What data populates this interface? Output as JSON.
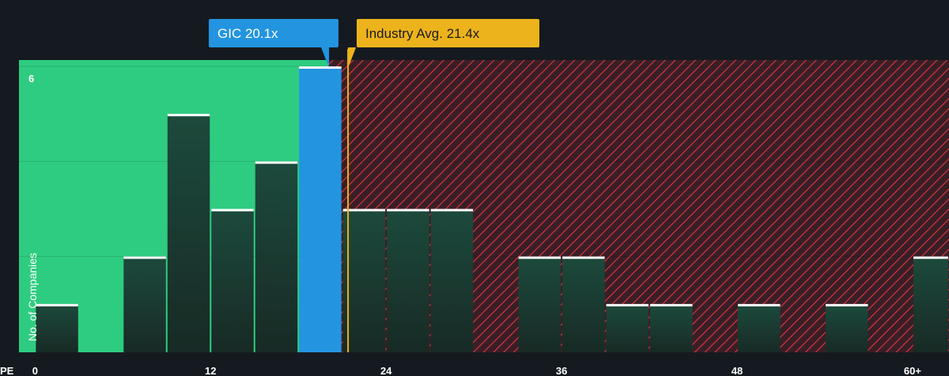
{
  "chart_data": {
    "type": "bar",
    "xlabel": "PE",
    "ylabel": "No. of Companies",
    "x_ticks": [
      "0",
      "12",
      "24",
      "36",
      "48",
      "60+"
    ],
    "x_tick_values": [
      0,
      12,
      24,
      36,
      48,
      60
    ],
    "xlim": [
      -1.1,
      61.3
    ],
    "y_ticks": [
      "6"
    ],
    "ylim": [
      0,
      6.15
    ],
    "bin_width": 3,
    "bins": [
      {
        "x": 1.5,
        "count": 1
      },
      {
        "x": 7.5,
        "count": 2
      },
      {
        "x": 10.5,
        "count": 5
      },
      {
        "x": 13.5,
        "count": 3
      },
      {
        "x": 16.5,
        "count": 4
      },
      {
        "x": 19.5,
        "count": 6,
        "highlight": true
      },
      {
        "x": 22.5,
        "count": 3
      },
      {
        "x": 25.5,
        "count": 3
      },
      {
        "x": 28.5,
        "count": 3
      },
      {
        "x": 34.5,
        "count": 2
      },
      {
        "x": 37.5,
        "count": 2
      },
      {
        "x": 40.5,
        "count": 1
      },
      {
        "x": 43.5,
        "count": 1
      },
      {
        "x": 49.5,
        "count": 1
      },
      {
        "x": 55.5,
        "count": 1
      },
      {
        "x": 61.5,
        "count": 2
      }
    ],
    "company": {
      "label": "GIC 20.1x",
      "value": 20.1,
      "color": "#2394e0"
    },
    "industry": {
      "label": "Industry Avg. 21.4x",
      "value": 21.4,
      "color": "#ecb31c"
    },
    "colors": {
      "background": "#151a20",
      "undervalued_zone": "#2ecc80",
      "overvalued_zone": "#3a1e26",
      "hatch": "#d0393f",
      "bar_fill": "#1c3c33",
      "bar_cap": "#ffffff",
      "highlight_bar": "#2394e0"
    }
  }
}
